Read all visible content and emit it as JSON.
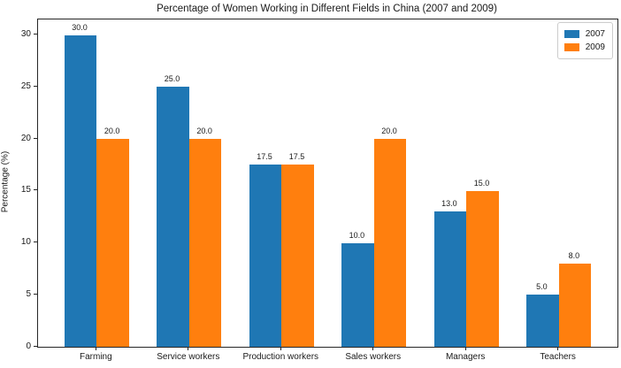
{
  "chart_data": {
    "type": "bar",
    "title": "Percentage of Women Working in Different Fields in China (2007 and 2009)",
    "categories": [
      "Farming",
      "Service workers",
      "Production workers",
      "Sales workers",
      "Managers",
      "Teachers"
    ],
    "series": [
      {
        "name": "2007",
        "color": "#1f77b4",
        "values": [
          30.0,
          25.0,
          17.5,
          10.0,
          13.0,
          5.0
        ]
      },
      {
        "name": "2009",
        "color": "#ff7f0e",
        "values": [
          20.0,
          20.0,
          17.5,
          20.0,
          15.0,
          8.0
        ]
      }
    ],
    "bar_value_labels": [
      [
        "30.0",
        "25.0",
        "17.5",
        "10.0",
        "13.0",
        "5.0"
      ],
      [
        "20.0",
        "20.0",
        "17.5",
        "20.0",
        "15.0",
        "8.0"
      ]
    ],
    "xlabel": "",
    "ylabel": "Percentage (%)",
    "ylim": [
      0,
      31.5
    ],
    "yticks": [
      "0",
      "5",
      "10",
      "15",
      "20",
      "25",
      "30"
    ],
    "grid": false,
    "legend_position": "upper right",
    "axis_color": "#262626",
    "background_color": "#ffffff"
  }
}
